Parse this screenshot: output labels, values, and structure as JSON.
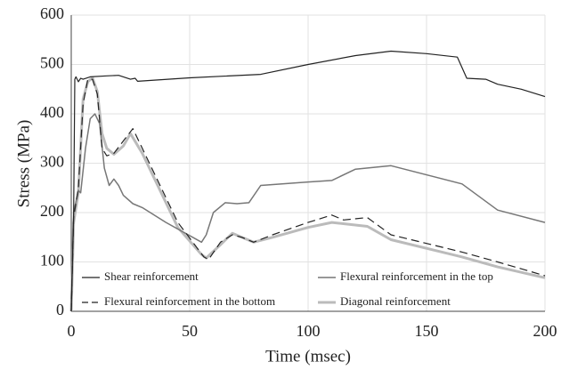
{
  "chart_data": {
    "type": "line",
    "x_label": "Time (msec)",
    "y_label": "Stress (MPa)",
    "xlim": [
      0,
      200
    ],
    "xticks": [
      0,
      50,
      100,
      150,
      200
    ],
    "ylim": [
      0,
      600
    ],
    "yticks": [
      0,
      100,
      200,
      300,
      400,
      500,
      600
    ],
    "grid": true,
    "legend": "bottom",
    "series": [
      {
        "name": "Shear reinforcement",
        "color": "#222222",
        "line_width": 1.2,
        "dashed": false,
        "x": [
          0,
          1,
          1.5,
          2,
          3,
          4,
          5,
          8,
          15,
          20,
          25,
          27,
          28,
          50,
          80,
          100,
          120,
          135,
          150,
          163,
          167,
          175,
          180,
          190,
          200
        ],
        "values": [
          0,
          200,
          470,
          475,
          465,
          472,
          470,
          475,
          477,
          478,
          470,
          472,
          466,
          473,
          480,
          500,
          518,
          527,
          522,
          515,
          472,
          470,
          460,
          450,
          435
        ]
      },
      {
        "name": "Flexural reinforcement in the top",
        "color": "#777777",
        "line_width": 1.5,
        "dashed": false,
        "x": [
          0,
          1,
          3,
          4,
          6,
          8,
          10,
          12,
          14,
          16,
          18,
          20,
          22,
          26,
          30,
          40,
          55,
          57,
          60,
          65,
          70,
          75,
          80,
          100,
          110,
          120,
          135,
          165,
          180,
          200
        ],
        "values": [
          0,
          200,
          245,
          240,
          330,
          390,
          400,
          380,
          290,
          255,
          268,
          255,
          235,
          218,
          210,
          180,
          140,
          155,
          200,
          220,
          218,
          220,
          255,
          262,
          265,
          288,
          295,
          258,
          205,
          180
        ]
      },
      {
        "name": "Flexural reinforcement in the bottom",
        "color": "#222222",
        "line_width": 1.2,
        "dashed": true,
        "x": [
          0,
          1,
          3,
          5,
          7,
          9,
          11,
          13,
          15,
          18,
          22,
          26,
          30,
          45,
          56,
          58,
          63,
          68,
          72,
          77,
          85,
          100,
          110,
          115,
          125,
          135,
          165,
          180,
          200
        ],
        "values": [
          0,
          190,
          250,
          420,
          470,
          470,
          440,
          330,
          315,
          320,
          345,
          370,
          330,
          180,
          110,
          105,
          140,
          155,
          150,
          140,
          155,
          180,
          195,
          185,
          190,
          155,
          120,
          100,
          72
        ]
      },
      {
        "name": "Diagonal reinforcement",
        "color": "#bbbbbb",
        "line_width": 3,
        "dashed": false,
        "x": [
          0,
          1,
          3,
          5,
          7,
          9,
          11,
          13,
          15,
          18,
          22,
          25,
          30,
          45,
          55,
          57,
          63,
          68,
          72,
          77,
          85,
          100,
          110,
          125,
          135,
          165,
          180,
          200
        ],
        "values": [
          0,
          180,
          240,
          430,
          465,
          473,
          445,
          360,
          330,
          318,
          335,
          360,
          320,
          170,
          115,
          108,
          135,
          158,
          150,
          140,
          150,
          170,
          180,
          172,
          145,
          110,
          90,
          68
        ]
      }
    ]
  }
}
